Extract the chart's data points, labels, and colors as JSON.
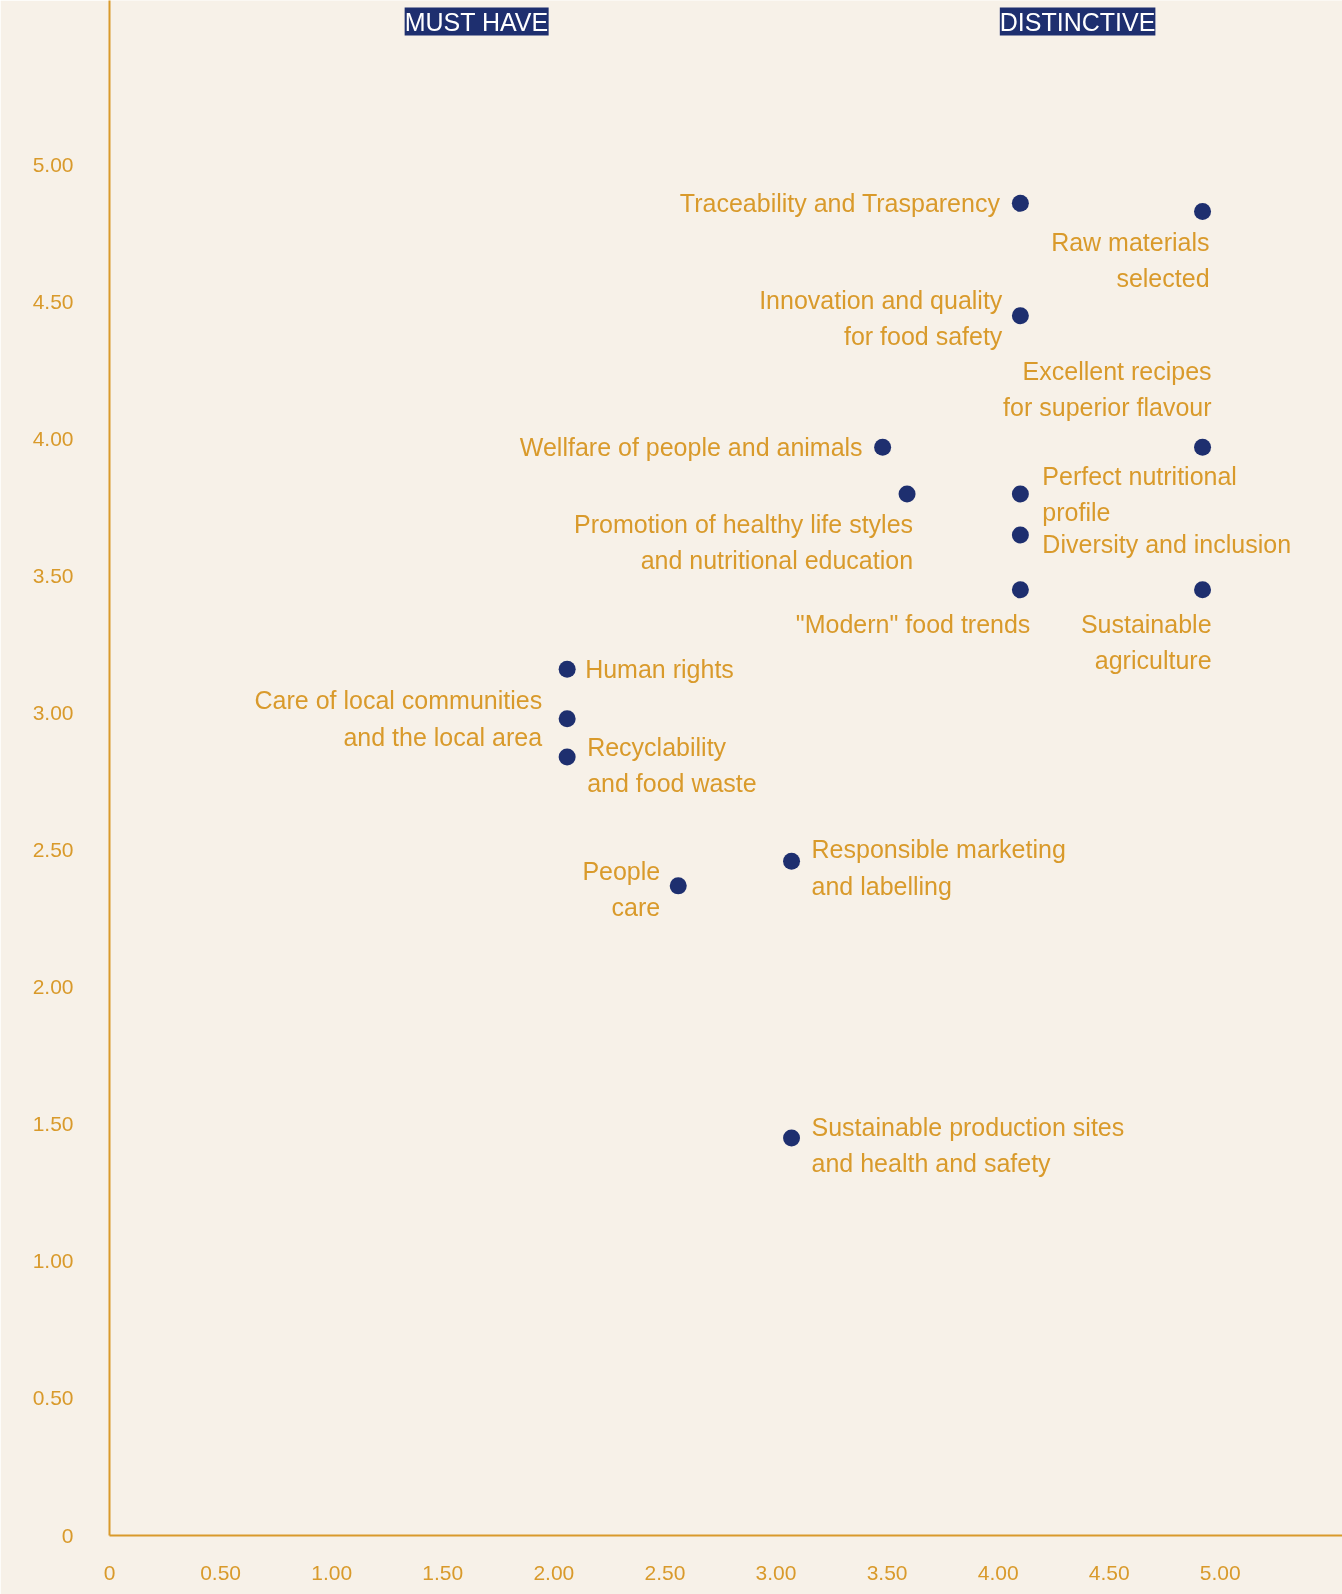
{
  "chart_data": {
    "type": "scatter",
    "marker": "circle",
    "grid": false,
    "x": [
      4.1,
      4.92,
      4.1,
      4.92,
      3.48,
      3.59,
      4.1,
      4.1,
      4.1,
      4.92,
      2.06,
      2.06,
      2.06,
      2.56,
      3.07,
      3.07
    ],
    "series": [
      {
        "color": "#1e2f6f",
        "values": [
          4.86,
          4.83,
          4.45,
          3.97,
          3.97,
          3.8,
          3.8,
          3.65,
          3.45,
          3.45,
          3.16,
          2.98,
          2.84,
          2.37,
          2.46,
          1.45
        ]
      }
    ],
    "value_labels": [
      "Traceability and Trasparency",
      "Raw materials\nselected",
      "Innovation and quality\nfor food safety",
      "Excellent recipes\nfor superior flavour",
      "Wellfare of people and animals",
      "Promotion of healthy life styles\nand nutritional education",
      "Perfect nutritional\nprofile",
      "Diversity and inclusion",
      "\"Modern\" food trends",
      "Sustainable\nagriculture",
      "Human rights",
      "Care of local communities\nand the local area",
      "Recyclability\nand food waste",
      "People\ncare",
      "Responsible marketing\nand labelling",
      "Sustainable production sites\nand health and safety"
    ],
    "annotations": [
      "MUST HAVE",
      "DISTINCTIVE"
    ],
    "xlim": [
      0,
      5.55
    ],
    "ylim": [
      0,
      5.6
    ],
    "xticks": [
      {
        "value": 0,
        "label": "0"
      },
      {
        "value": 0.5,
        "label": "0.50"
      },
      {
        "value": 1,
        "label": "1.00"
      },
      {
        "value": 1.5,
        "label": "1.50"
      },
      {
        "value": 2,
        "label": "2.00"
      },
      {
        "value": 2.5,
        "label": "2.50"
      },
      {
        "value": 3,
        "label": "3.00"
      },
      {
        "value": 3.5,
        "label": "3.50"
      },
      {
        "value": 4,
        "label": "4.00"
      },
      {
        "value": 4.5,
        "label": "4.50"
      },
      {
        "value": 5,
        "label": "5.00"
      }
    ],
    "yticks": [
      {
        "value": 0,
        "label": "0"
      },
      {
        "value": 0.5,
        "label": "0.50"
      },
      {
        "value": 1,
        "label": "1.00"
      },
      {
        "value": 1.5,
        "label": "1.50"
      },
      {
        "value": 2,
        "label": "2.00"
      },
      {
        "value": 2.5,
        "label": "2.50"
      },
      {
        "value": 3,
        "label": "3.00"
      },
      {
        "value": 3.5,
        "label": "3.50"
      },
      {
        "value": 4,
        "label": "4.00"
      },
      {
        "value": 4.5,
        "label": "4.50"
      },
      {
        "value": 5,
        "label": "5.00"
      }
    ]
  }
}
